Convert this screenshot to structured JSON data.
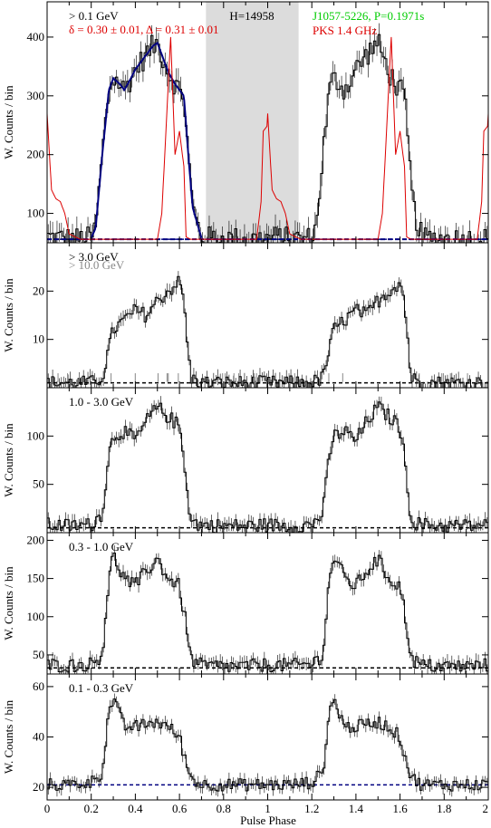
{
  "figure": {
    "xlabel": "Pulse Phase",
    "x_ticks": [
      "0",
      "0.2",
      "0.4",
      "0.6",
      "0.8",
      "1",
      "1.2",
      "1.4",
      "1.6",
      "1.8",
      "2"
    ],
    "colors": {
      "gamma": "#000000",
      "radio": "#dd0000",
      "fit": "#000080",
      "source": "#00cc00",
      "shade": "#dcdcdc",
      "secondary": "#888888"
    }
  },
  "chart_data": [
    {
      "type": "line",
      "panel": "top",
      "ylabel": "W. Counts / bin",
      "xlim": [
        0,
        2
      ],
      "ylim": [
        50,
        460
      ],
      "yticks": [
        100,
        200,
        300,
        400
      ],
      "labels": {
        "energy": "> 0.1 GeV",
        "params": "δ = 0.30 ± 0.01, Δ = 0.31 ± 0.01",
        "htest": "H=14958",
        "source": "J1057-5226, P=0.1971s",
        "radio": "PKS 1.4 GHz"
      },
      "shaded_region": [
        0.72,
        1.14
      ],
      "background_level": 56,
      "series": [
        {
          "name": "",
          "x": [
            0.0,
            0.05,
            0.1,
            0.15,
            0.2,
            0.22,
            0.25,
            0.28,
            0.3,
            0.33,
            0.35,
            0.38,
            0.4,
            0.43,
            0.45,
            0.48,
            0.5,
            0.52,
            0.55,
            0.58,
            0.6,
            0.62,
            0.64,
            0.66,
            0.7,
            0.8,
            0.9,
            1.0,
            1.1,
            1.2
          ],
          "y": [
            60,
            58,
            57,
            56,
            58,
            75,
            200,
            310,
            330,
            320,
            310,
            330,
            345,
            360,
            370,
            385,
            390,
            370,
            340,
            320,
            310,
            300,
            200,
            110,
            58,
            57,
            56,
            56,
            57,
            60
          ]
        },
        {
          "name": "PKS 1.4 GHz",
          "x": [
            0.0,
            0.02,
            0.04,
            0.06,
            0.08,
            0.1,
            0.15,
            0.5,
            0.52,
            0.54,
            0.56,
            0.58,
            0.6,
            0.62,
            0.63,
            0.65,
            0.7,
            0.95,
            0.97,
            0.98,
            1.0,
            1.02,
            1.04,
            1.06,
            1.08,
            1.1,
            1.15,
            1.2
          ],
          "y": [
            270,
            140,
            125,
            120,
            100,
            65,
            56,
            56,
            100,
            250,
            400,
            200,
            240,
            180,
            60,
            56,
            56,
            56,
            120,
            240,
            250,
            220,
            180,
            150,
            120,
            90,
            60,
            56
          ]
        }
      ]
    },
    {
      "type": "line",
      "panel": "> 3.0 GeV",
      "ylabel": "W. Counts / bin",
      "xlim": [
        0,
        2
      ],
      "ylim": [
        0,
        30
      ],
      "yticks": [
        10,
        20
      ],
      "labels": {
        "energy": "> 3.0 GeV",
        "energy2": "> 10.0 GeV"
      },
      "background_level": 1,
      "x": [
        0.0,
        0.1,
        0.2,
        0.25,
        0.3,
        0.35,
        0.4,
        0.45,
        0.5,
        0.55,
        0.6,
        0.62,
        0.65,
        0.7,
        0.8,
        0.9,
        1.0
      ],
      "y": [
        1,
        1,
        1,
        2,
        12,
        14,
        16,
        15,
        18,
        20,
        22,
        18,
        2,
        1,
        1,
        1,
        1
      ]
    },
    {
      "type": "line",
      "panel": "1.0 - 3.0 GeV",
      "ylabel": "W. Counts / bin",
      "xlim": [
        0,
        2
      ],
      "ylim": [
        0,
        150
      ],
      "yticks": [
        50,
        100
      ],
      "labels": {
        "energy": "1.0 - 3.0 GeV"
      },
      "background_level": 5,
      "x": [
        0.0,
        0.1,
        0.2,
        0.25,
        0.28,
        0.3,
        0.35,
        0.4,
        0.45,
        0.5,
        0.55,
        0.6,
        0.63,
        0.65,
        0.7,
        0.8,
        0.9,
        1.0
      ],
      "y": [
        8,
        7,
        8,
        20,
        80,
        100,
        105,
        95,
        115,
        130,
        120,
        110,
        60,
        12,
        8,
        7,
        7,
        8
      ]
    },
    {
      "type": "line",
      "panel": "0.3 - 1.0 GeV",
      "ylabel": "W. Counts / bin",
      "xlim": [
        0,
        2
      ],
      "ylim": [
        25,
        210
      ],
      "yticks": [
        50,
        100,
        150,
        200
      ],
      "labels": {
        "energy": "0.3 - 1.0 GeV"
      },
      "background_level": 33,
      "x": [
        0.0,
        0.1,
        0.2,
        0.25,
        0.28,
        0.3,
        0.35,
        0.4,
        0.45,
        0.5,
        0.55,
        0.6,
        0.63,
        0.65,
        0.7,
        0.8,
        0.9,
        1.0
      ],
      "y": [
        37,
        36,
        38,
        50,
        150,
        180,
        150,
        140,
        160,
        175,
        150,
        140,
        90,
        45,
        36,
        35,
        35,
        37
      ]
    },
    {
      "type": "line",
      "panel": "0.1 - 0.3 GeV",
      "ylabel": "W. Counts / bin",
      "xlim": [
        0,
        2
      ],
      "ylim": [
        15,
        65
      ],
      "yticks": [
        20,
        40,
        60
      ],
      "labels": {
        "energy": "0.1 - 0.3 GeV"
      },
      "background_level": 21,
      "x": [
        0.0,
        0.1,
        0.2,
        0.25,
        0.28,
        0.3,
        0.35,
        0.4,
        0.45,
        0.5,
        0.55,
        0.6,
        0.63,
        0.65,
        0.7,
        0.8,
        0.9,
        1.0
      ],
      "y": [
        21,
        21,
        22,
        26,
        50,
        55,
        44,
        44,
        45,
        46,
        44,
        40,
        30,
        24,
        21,
        21,
        21,
        21
      ]
    }
  ]
}
